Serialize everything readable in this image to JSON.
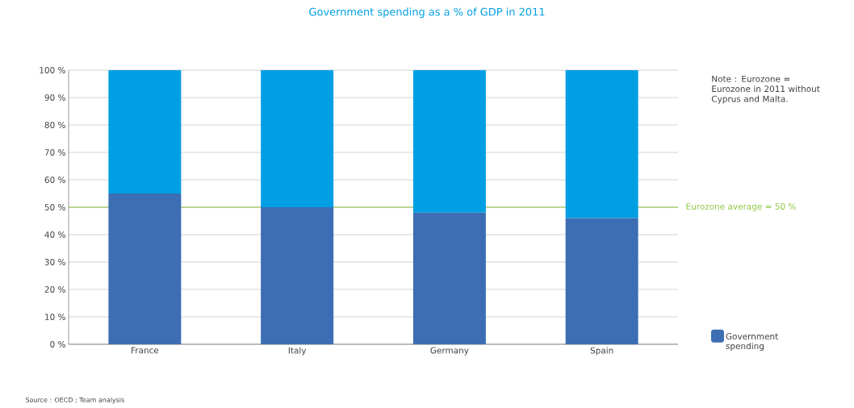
{
  "chart_data": {
    "type": "bar",
    "title": "Government spending as a % of GDP in 2011",
    "stacked": true,
    "categories": [
      "France",
      "Italy",
      "Germany",
      "Spain"
    ],
    "series": [
      {
        "name": "Government spending",
        "color": "#3d6eb4",
        "values": [
          55,
          50,
          48,
          46
        ]
      },
      {
        "color": "#009fe3",
        "values": [
          45,
          50,
          52,
          54
        ]
      }
    ],
    "ylim": [
      0,
      100
    ],
    "yticks": [
      {
        "value": 0,
        "label": "0 %"
      },
      {
        "value": 10,
        "label": "10 %"
      },
      {
        "value": 20,
        "label": "20 %"
      },
      {
        "value": 30,
        "label": "30 %"
      },
      {
        "value": 40,
        "label": "40 %"
      },
      {
        "value": 50,
        "label": "50 %"
      },
      {
        "value": 60,
        "label": "60 %"
      },
      {
        "value": 70,
        "label": "70 %"
      },
      {
        "value": 80,
        "label": "80 %"
      },
      {
        "value": 90,
        "label": "90 %"
      },
      {
        "value": 100,
        "label": "100 %"
      }
    ],
    "grid": "y",
    "legend": "bottom right",
    "ref_lines": [
      {
        "axis": "y",
        "value": 50,
        "label": "Eurozone average = 50 %",
        "color": "#8dc63f"
      }
    ],
    "annotations": [
      "Note : Eurozone = Eurozone in 2011 without Cyprus and Malta.",
      "Source : OECD ; Team analysis"
    ]
  }
}
